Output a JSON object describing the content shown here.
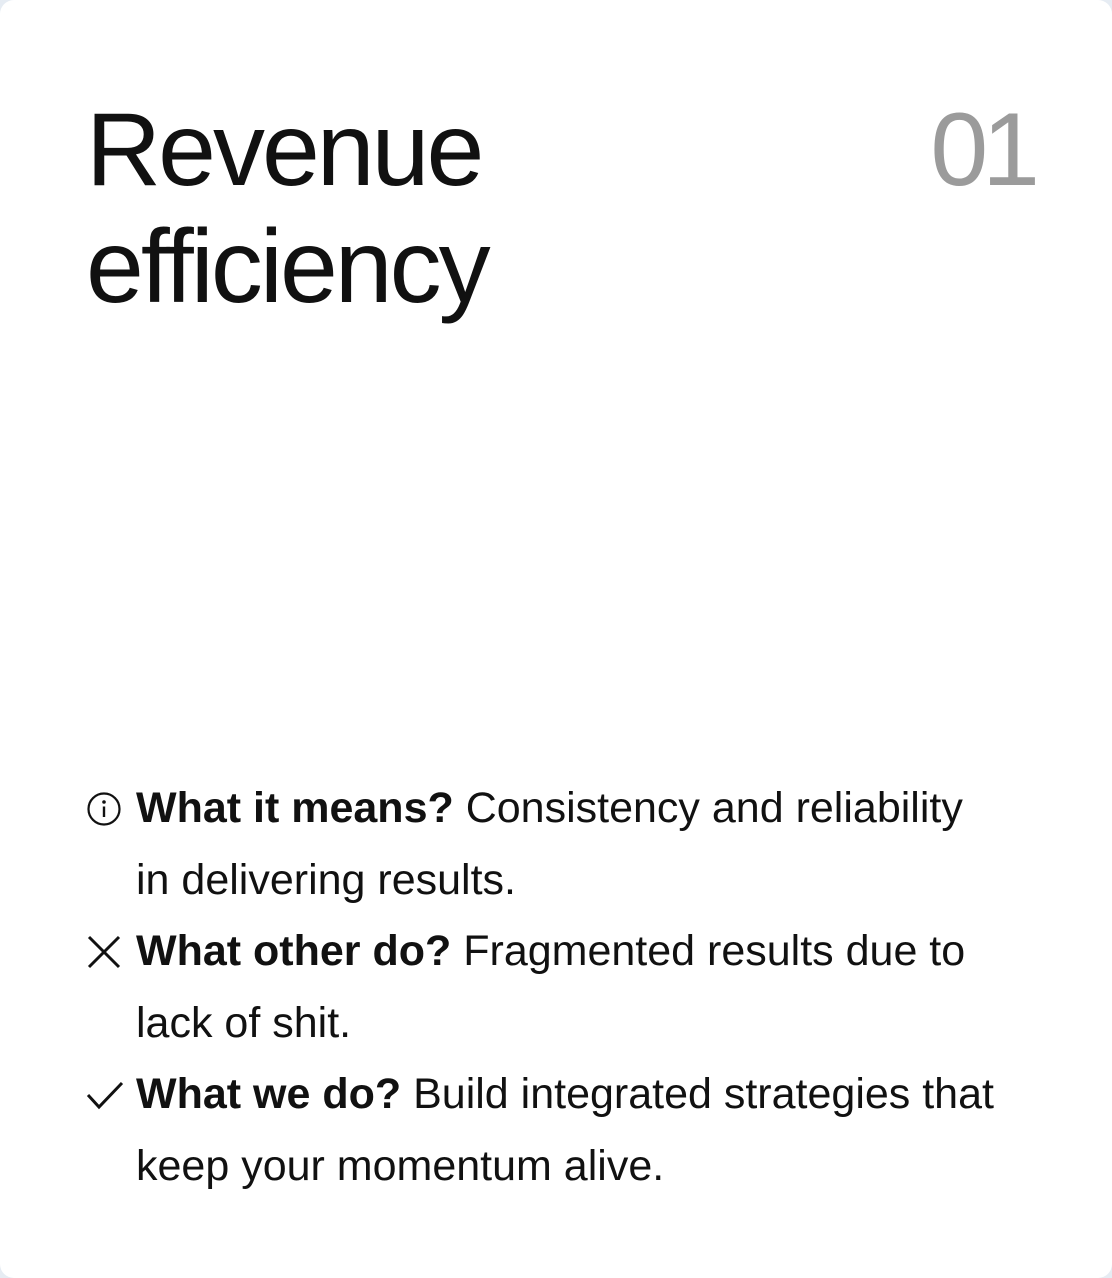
{
  "card": {
    "title_line1": "Revenue",
    "title_line2": "efficiency",
    "number": "01"
  },
  "points": [
    {
      "icon": "info-icon",
      "question": "What it means?",
      "answer": "Consistency and reliability in delivering results."
    },
    {
      "icon": "x-icon",
      "question": "What other do?",
      "answer": "Fragmented results due to lack of shit."
    },
    {
      "icon": "check-icon",
      "question": "What we do?",
      "answer": "Build integrated strategies that keep your momentum alive."
    }
  ]
}
